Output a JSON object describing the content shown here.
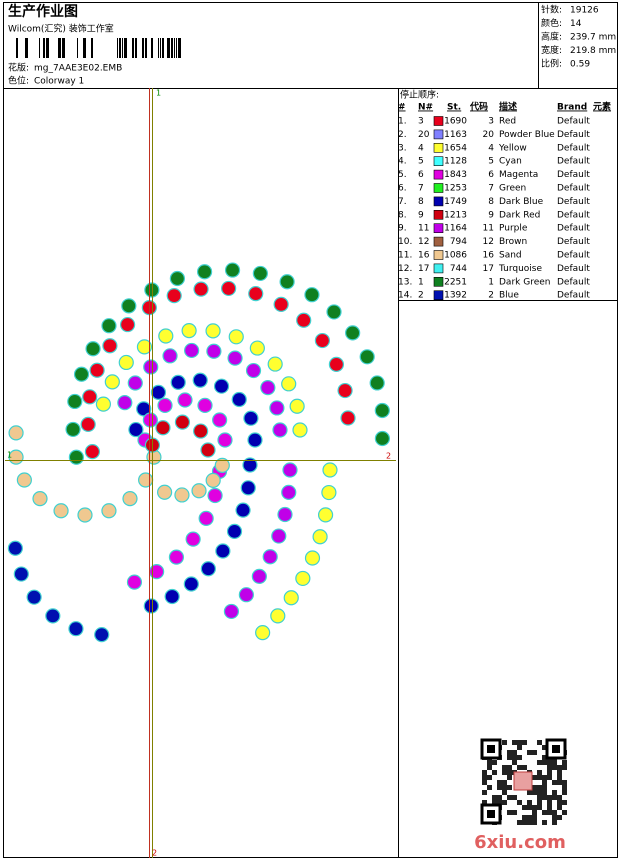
{
  "header": {
    "title": "生产作业图",
    "company": "Wilcom(汇究) 装饰工作室",
    "design_label": "花版:",
    "design": "mg_7AAE3E02.EMB",
    "colorway_label": "色位:",
    "colorway": "Colorway 1"
  },
  "stats": [
    [
      "针数:",
      "19126"
    ],
    [
      "颜色:",
      "14"
    ],
    [
      "高度:",
      "239.7 mm"
    ],
    [
      "宽度:",
      "219.8 mm"
    ],
    [
      "比例:",
      "0.59"
    ]
  ],
  "markers": {
    "top": "1",
    "left": "1",
    "right": "2",
    "bottom": "2"
  },
  "stop_sequence": {
    "title": "停止顺序:",
    "columns": [
      "#",
      "N#",
      "St.",
      "代码",
      "描述",
      "Brand",
      "元素"
    ],
    "rows": [
      {
        "no": "1.",
        "needle": "3",
        "stitches": "1690",
        "color": "#e8001c",
        "code": "3",
        "name": "Red",
        "brand": "Default"
      },
      {
        "no": "2.",
        "needle": "20",
        "stitches": "1163",
        "color": "#8080ff",
        "code": "20",
        "name": "Powder Blue",
        "brand": "Default"
      },
      {
        "no": "3.",
        "needle": "4",
        "stitches": "1654",
        "color": "#ffff30",
        "code": "4",
        "name": "Yellow",
        "brand": "Default"
      },
      {
        "no": "4.",
        "needle": "5",
        "stitches": "1128",
        "color": "#40ffff",
        "code": "5",
        "name": "Cyan",
        "brand": "Default"
      },
      {
        "no": "5.",
        "needle": "6",
        "stitches": "1843",
        "color": "#e000e0",
        "code": "6",
        "name": "Magenta",
        "brand": "Default"
      },
      {
        "no": "6.",
        "needle": "7",
        "stitches": "1253",
        "color": "#20f020",
        "code": "7",
        "name": "Green",
        "brand": "Default"
      },
      {
        "no": "7.",
        "needle": "8",
        "stitches": "1749",
        "color": "#0000b0",
        "code": "8",
        "name": "Dark Blue",
        "brand": "Default"
      },
      {
        "no": "8.",
        "needle": "9",
        "stitches": "1213",
        "color": "#d00010",
        "code": "9",
        "name": "Dark Red",
        "brand": "Default"
      },
      {
        "no": "9.",
        "needle": "11",
        "stitches": "1164",
        "color": "#c000e8",
        "code": "11",
        "name": "Purple",
        "brand": "Default"
      },
      {
        "no": "10.",
        "needle": "12",
        "stitches": "794",
        "color": "#a06040",
        "code": "12",
        "name": "Brown",
        "brand": "Default"
      },
      {
        "no": "11.",
        "needle": "16",
        "stitches": "1086",
        "color": "#f0c890",
        "code": "16",
        "name": "Sand",
        "brand": "Default"
      },
      {
        "no": "12.",
        "needle": "17",
        "stitches": "744",
        "color": "#40f0f0",
        "code": "17",
        "name": "Turquoise",
        "brand": "Default"
      },
      {
        "no": "13.",
        "needle": "1",
        "stitches": "2251",
        "color": "#108020",
        "code": "1",
        "name": "Dark Green",
        "brand": "Default"
      },
      {
        "no": "14.",
        "needle": "2",
        "stitches": "1392",
        "color": "#0010b0",
        "code": "2",
        "name": "Blue",
        "brand": "Default"
      }
    ]
  },
  "watermark": "6xiu.com"
}
